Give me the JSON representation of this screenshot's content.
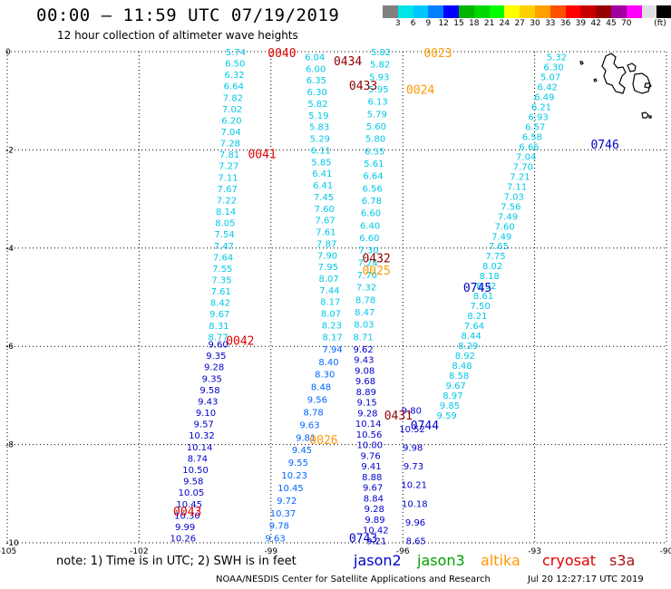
{
  "header": {
    "title": "00:00 – 11:59 UTC 07/19/2019",
    "subtitle": "12 hour collection of altimeter wave heights"
  },
  "legend": {
    "unit": "(ft)",
    "colors": [
      "#808080",
      "#00e5e5",
      "#00c8ff",
      "#0080ff",
      "#0000ff",
      "#00b400",
      "#00d700",
      "#00ff00",
      "#ffff00",
      "#ffd000",
      "#ffa000",
      "#ff5000",
      "#ff0000",
      "#c80000",
      "#960000",
      "#a000a0",
      "#ff00ff",
      "#e0e0e0",
      "#000000"
    ],
    "labels": [
      "3",
      "6",
      "9",
      "12",
      "15",
      "18",
      "21",
      "24",
      "27",
      "30",
      "33",
      "36",
      "39",
      "42",
      "45",
      "70"
    ]
  },
  "map": {
    "lon_range": [
      -105,
      -90
    ],
    "lat_range": [
      -10,
      0
    ],
    "lon_ticks": [
      {
        "v": -105,
        "t": "-105"
      },
      {
        "v": -102,
        "t": "-102"
      },
      {
        "v": -99,
        "t": "-99"
      },
      {
        "v": -96,
        "t": "-96"
      },
      {
        "v": -93,
        "t": "-93"
      },
      {
        "v": -90,
        "t": "-90"
      }
    ],
    "lat_ticks": [
      {
        "v": 0,
        "t": "0"
      },
      {
        "v": -2,
        "t": "-2"
      },
      {
        "v": -4,
        "t": "-4"
      },
      {
        "v": -6,
        "t": "-6"
      },
      {
        "v": -8,
        "t": "-8"
      },
      {
        "v": -10,
        "t": "-10"
      }
    ],
    "land_icon": "galapagos-islands",
    "colors": {
      "jason2": "#0000c8",
      "jason3": "#00a000",
      "altika": "#ff9900",
      "cryosat": "#e00000",
      "s3a": "#aa1010",
      "swh_low": "#00c8e6",
      "swh_mid": "#0066ff",
      "swh_high": "#0000cc"
    },
    "tracks": [
      {
        "id": "track-a",
        "color": "#00c8e6",
        "lon_start": -99.8,
        "lat_start": 0,
        "lon_end": -100.2,
        "lat_end": -5.8,
        "values": [
          "5.74",
          "6.50",
          "6.32",
          "6.64",
          "7.82",
          "7.02",
          "6.20",
          "7.04",
          "7.28",
          "7.81",
          "7.27",
          "7.11",
          "7.67",
          "7.22",
          "8.14",
          "8.05",
          "7.54",
          "7.47",
          "7.64",
          "7.55",
          "7.35",
          "7.61",
          "8.42",
          "9.67",
          "8.31",
          "8.77"
        ]
      },
      {
        "id": "track-a2",
        "color": "#0000cc",
        "lon_start": -100.2,
        "lat_start": -5.95,
        "lon_end": -101.0,
        "lat_end": -9.9,
        "values": [
          "9.60",
          "9.35",
          "9.28",
          "9.35",
          "9.58",
          "9.43",
          "9.10",
          "9.57",
          "10.32",
          "10.14",
          "8.74",
          "10.50",
          "9.58",
          "10.05",
          "10.45",
          "10.30",
          "9.99",
          "10.26"
        ]
      },
      {
        "id": "track-b",
        "color": "#00c8e6",
        "lon_start": -98.0,
        "lat_start": -0.1,
        "lon_end": -97.6,
        "lat_end": -5.8,
        "values": [
          "6.04",
          "6.00",
          "6.35",
          "6.30",
          "5.82",
          "5.19",
          "5.83",
          "5.29",
          "6.11",
          "5.85",
          "6.41",
          "6.41",
          "7.45",
          "7.60",
          "7.67",
          "7.61",
          "7.87",
          "7.90",
          "7.95",
          "8.07",
          "7.44",
          "8.17",
          "8.07",
          "8.23",
          "8.17"
        ]
      },
      {
        "id": "track-b2",
        "color": "#0066ff",
        "lon_start": -97.6,
        "lat_start": -6.05,
        "lon_end": -98.9,
        "lat_end": -9.9,
        "values": [
          "7.94",
          "8.40",
          "8.30",
          "8.48",
          "9.56",
          "8.78",
          "9.63",
          "9.81",
          "9.45",
          "9.55",
          "10.23",
          "10.45",
          "9.72",
          "10.37",
          "9.78",
          "9.63"
        ]
      },
      {
        "id": "track-c",
        "color": "#00c8e6",
        "lon_start": -96.5,
        "lat_start": 0,
        "lon_end": -96.9,
        "lat_end": -5.8,
        "values": [
          "5.82",
          "5.82",
          "5.93",
          "5.95",
          "6.13",
          "5.79",
          "5.60",
          "5.80",
          "6.35",
          "5.61",
          "6.64",
          "6.56",
          "6.78",
          "6.60",
          "6.40",
          "6.60",
          "7.30",
          "7.24",
          "7.70",
          "7.32",
          "8.78",
          "8.47",
          "8.03",
          "8.71"
        ]
      },
      {
        "id": "track-c2",
        "color": "#0000cc",
        "lon_start": -96.9,
        "lat_start": -6.05,
        "lon_end": -96.6,
        "lat_end": -9.95,
        "values": [
          "9.62",
          "9.43",
          "9.08",
          "9.68",
          "8.89",
          "9.15",
          "9.28",
          "10.14",
          "10.56",
          "10.00",
          "9.76",
          "9.41",
          "8.88",
          "9.67",
          "8.84",
          "9.28",
          "9.89",
          "10.42",
          "9.21"
        ]
      },
      {
        "id": "track-d",
        "color": "#00c8e6",
        "lon_start": -92.5,
        "lat_start": -0.1,
        "lon_end": -95.0,
        "lat_end": -7.4,
        "values": [
          "5.32",
          "6.30",
          "5.07",
          "6.42",
          "6.49",
          "6.21",
          "6.93",
          "6.57",
          "6.58",
          "6.66",
          "7.04",
          "7.70",
          "7.21",
          "7.11",
          "7.03",
          "7.56",
          "7.49",
          "7.60",
          "7.49",
          "7.65",
          "7.75",
          "8.02",
          "8.18",
          "8.92",
          "8.61",
          "7.50",
          "8.21",
          "7.64",
          "8.44",
          "8.29",
          "8.92",
          "8.48",
          "8.58",
          "9.67",
          "8.97",
          "9.85",
          "9.59"
        ]
      },
      {
        "id": "track-d2",
        "color": "#0000cc",
        "lon_start": -95.8,
        "lat_start": -7.3,
        "lon_end": -95.7,
        "lat_end": -9.95,
        "values": [
          "9.80",
          "10.52",
          "9.98",
          "9.73",
          "10.21",
          "10.18",
          "9.96",
          "8.65"
        ]
      }
    ],
    "pass_labels": [
      {
        "t": "0040",
        "lon": -98.75,
        "lat": -0.02,
        "c": "#e00000"
      },
      {
        "t": "0434",
        "lon": -97.25,
        "lat": -0.18,
        "c": "#900000"
      },
      {
        "t": "0023",
        "lon": -95.2,
        "lat": -0.02,
        "c": "#ff9900"
      },
      {
        "t": "0433",
        "lon": -96.9,
        "lat": -0.68,
        "c": "#900000"
      },
      {
        "t": "0024",
        "lon": -95.6,
        "lat": -0.77,
        "c": "#ff9900"
      },
      {
        "t": "0746",
        "lon": -91.4,
        "lat": -1.88,
        "c": "#0000c8"
      },
      {
        "t": "0041",
        "lon": -99.2,
        "lat": -2.08,
        "c": "#e00000"
      },
      {
        "t": "0432",
        "lon": -96.6,
        "lat": -4.2,
        "c": "#900000"
      },
      {
        "t": "0025",
        "lon": -96.6,
        "lat": -4.45,
        "c": "#ff9900"
      },
      {
        "t": "0745",
        "lon": -94.3,
        "lat": -4.8,
        "c": "#0000c8"
      },
      {
        "t": "0042",
        "lon": -99.7,
        "lat": -5.88,
        "c": "#e00000"
      },
      {
        "t": "0431",
        "lon": -96.1,
        "lat": -7.4,
        "c": "#900000"
      },
      {
        "t": "0744",
        "lon": -95.5,
        "lat": -7.6,
        "c": "#0000c8"
      },
      {
        "t": "0026",
        "lon": -97.8,
        "lat": -7.9,
        "c": "#ff9900"
      },
      {
        "t": "0743",
        "lon": -96.9,
        "lat": -9.9,
        "c": "#0000c8"
      },
      {
        "t": "0043",
        "lon": -100.9,
        "lat": -9.35,
        "c": "#e00000"
      }
    ]
  },
  "footer": {
    "note": "note:  1) Time is in UTC;  2) SWH is in feet",
    "satellites": [
      {
        "name": "jason2",
        "color": "#0000c8",
        "left": 390
      },
      {
        "name": "jason3",
        "color": "#00a000",
        "left": 460
      },
      {
        "name": "altika",
        "color": "#ff9900",
        "left": 530
      },
      {
        "name": "cryosat",
        "color": "#e00000",
        "left": 598
      },
      {
        "name": "s3a",
        "color": "#aa1010",
        "left": 672
      }
    ],
    "credit": "NOAA/NESDIS Center for Satellite Applications and Research",
    "timestamp": "Jul 20 12:27:17 UTC 2019"
  }
}
